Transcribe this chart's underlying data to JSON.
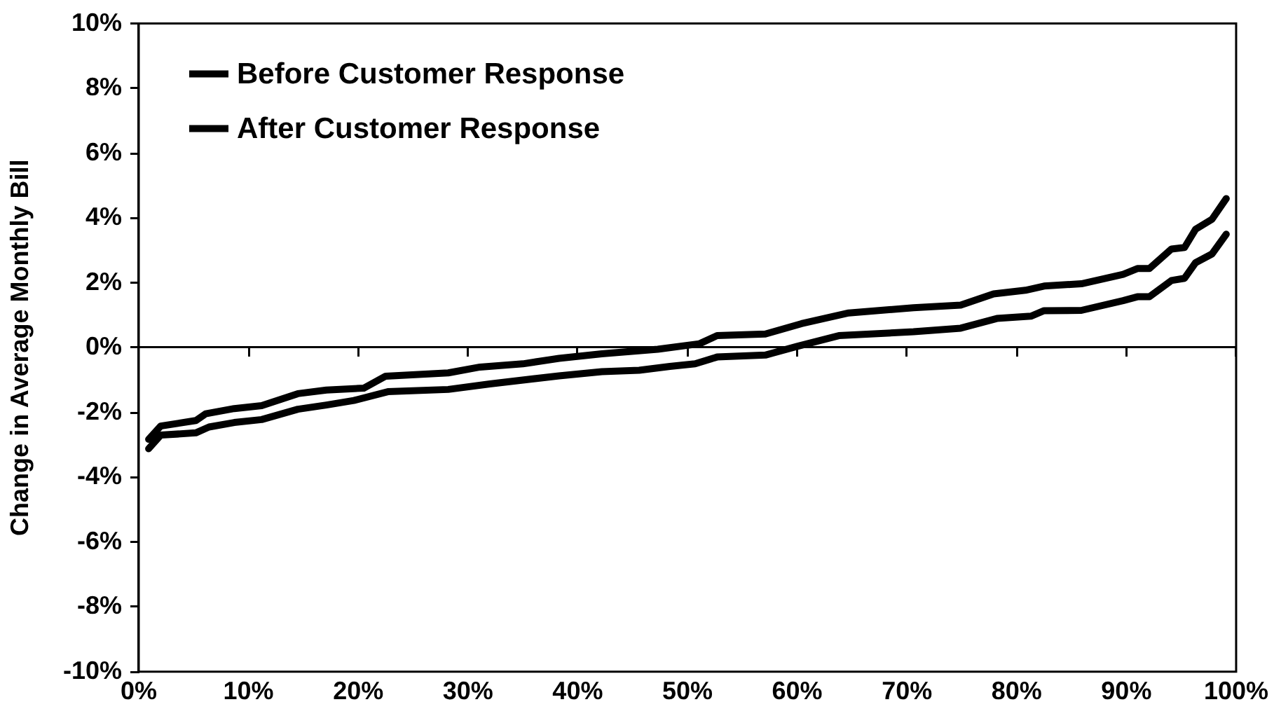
{
  "chart_data": {
    "type": "line",
    "ylabel": "Change in Average Monthly Bill",
    "series": [
      {
        "name": "Before Customer Response",
        "color": "#000000",
        "x": [
          0.9,
          2.0,
          5.2,
          6.1,
          8.7,
          11.2,
          14.5,
          17.1,
          20.5,
          22.5,
          28.2,
          31.1,
          35.0,
          38.3,
          42.2,
          47.3,
          51.1,
          52.7,
          57.1,
          60.4,
          64.7,
          70.6,
          74.9,
          77.9,
          80.8,
          82.5,
          85.9,
          89.7,
          91.0,
          92.1,
          94.1,
          95.3,
          96.3,
          97.8,
          99.1
        ],
        "values": [
          -2.83,
          -2.42,
          -2.25,
          -2.04,
          -1.88,
          -1.79,
          -1.42,
          -1.31,
          -1.25,
          -0.88,
          -0.78,
          -0.6,
          -0.5,
          -0.33,
          -0.19,
          -0.05,
          0.12,
          0.37,
          0.42,
          0.74,
          1.07,
          1.23,
          1.31,
          1.66,
          1.77,
          1.9,
          1.97,
          2.26,
          2.44,
          2.44,
          3.04,
          3.09,
          3.65,
          3.96,
          4.6
        ]
      },
      {
        "name": "After Customer Response",
        "color": "#000000",
        "x": [
          0.9,
          2.0,
          5.2,
          6.4,
          8.7,
          11.2,
          14.5,
          17.1,
          19.6,
          22.7,
          28.2,
          32.0,
          38.3,
          42.2,
          45.6,
          48.4,
          50.7,
          52.7,
          57.1,
          60.0,
          63.8,
          70.6,
          74.9,
          78.2,
          81.3,
          82.5,
          85.9,
          89.7,
          91.0,
          92.1,
          94.1,
          95.3,
          96.3,
          97.8,
          99.1
        ],
        "values": [
          -3.12,
          -2.7,
          -2.63,
          -2.45,
          -2.31,
          -2.22,
          -1.9,
          -1.77,
          -1.63,
          -1.36,
          -1.29,
          -1.12,
          -0.87,
          -0.74,
          -0.7,
          -0.58,
          -0.5,
          -0.29,
          -0.23,
          0.04,
          0.37,
          0.49,
          0.6,
          0.9,
          0.97,
          1.14,
          1.15,
          1.45,
          1.57,
          1.57,
          2.07,
          2.14,
          2.62,
          2.89,
          3.5
        ]
      }
    ],
    "xlim": [
      0,
      100
    ],
    "xticks": [
      {
        "value": 0,
        "label": "0%"
      },
      {
        "value": 10,
        "label": "10%"
      },
      {
        "value": 20,
        "label": "20%"
      },
      {
        "value": 30,
        "label": "30%"
      },
      {
        "value": 40,
        "label": "40%"
      },
      {
        "value": 50,
        "label": "50%"
      },
      {
        "value": 60,
        "label": "60%"
      },
      {
        "value": 70,
        "label": "70%"
      },
      {
        "value": 80,
        "label": "80%"
      },
      {
        "value": 90,
        "label": "90%"
      },
      {
        "value": 100,
        "label": "100%"
      }
    ],
    "ylim": [
      -10,
      10
    ],
    "yticks": [
      {
        "value": -10,
        "label": "-10%"
      },
      {
        "value": -8,
        "label": "-8%"
      },
      {
        "value": -6,
        "label": "-6%"
      },
      {
        "value": -4,
        "label": "-4%"
      },
      {
        "value": -2,
        "label": "-2%"
      },
      {
        "value": 0,
        "label": "0%"
      },
      {
        "value": 2,
        "label": "2%"
      },
      {
        "value": 4,
        "label": "4%"
      },
      {
        "value": 6,
        "label": "6%"
      },
      {
        "value": 8,
        "label": "8%"
      },
      {
        "value": 10,
        "label": "10%"
      }
    ],
    "legend": "top left",
    "marker": "none",
    "line_style": "solid"
  }
}
